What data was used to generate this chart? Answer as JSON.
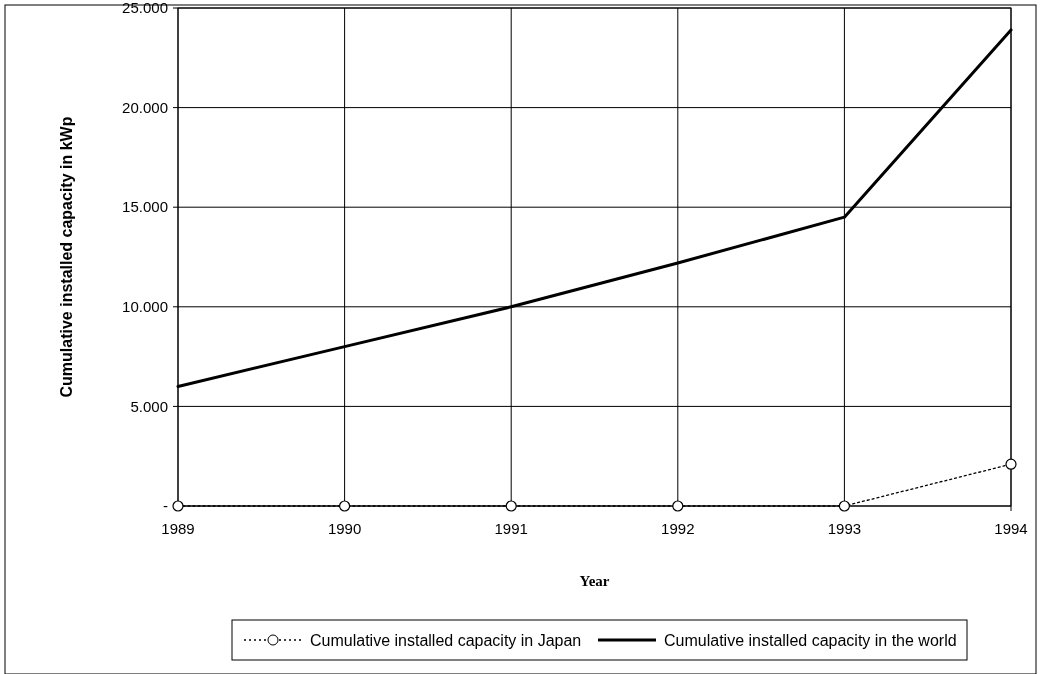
{
  "chart_data": {
    "type": "line",
    "xlabel": "Year",
    "ylabel": "Cumulative installed capacity in kWp",
    "x": [
      1989,
      1990,
      1991,
      1992,
      1993,
      1994
    ],
    "xlim": [
      1989,
      1994
    ],
    "xticks": [
      1989,
      1990,
      1991,
      1992,
      1993,
      1994
    ],
    "ylim": [
      0,
      25000
    ],
    "yticks": [
      {
        "value": 0,
        "label": "-"
      },
      {
        "value": 5000,
        "label": "5.000"
      },
      {
        "value": 10000,
        "label": "10.000"
      },
      {
        "value": 15000,
        "label": "15.000"
      },
      {
        "value": 20000,
        "label": "20.000"
      },
      {
        "value": 25000,
        "label": "25.000"
      }
    ],
    "grid": true,
    "legend": "bottom",
    "series": [
      {
        "name": "Cumulative installed capacity in Japan",
        "color": "#000000",
        "marker": "circle",
        "line_style": "dotted",
        "values": [
          0,
          0,
          0,
          0,
          0,
          2100
        ]
      },
      {
        "name": "Cumulative installed capacity in the world",
        "color": "#000000",
        "marker": "none",
        "line_style": "solid",
        "values": [
          6000,
          8000,
          10000,
          12200,
          14500,
          23900
        ]
      }
    ]
  }
}
